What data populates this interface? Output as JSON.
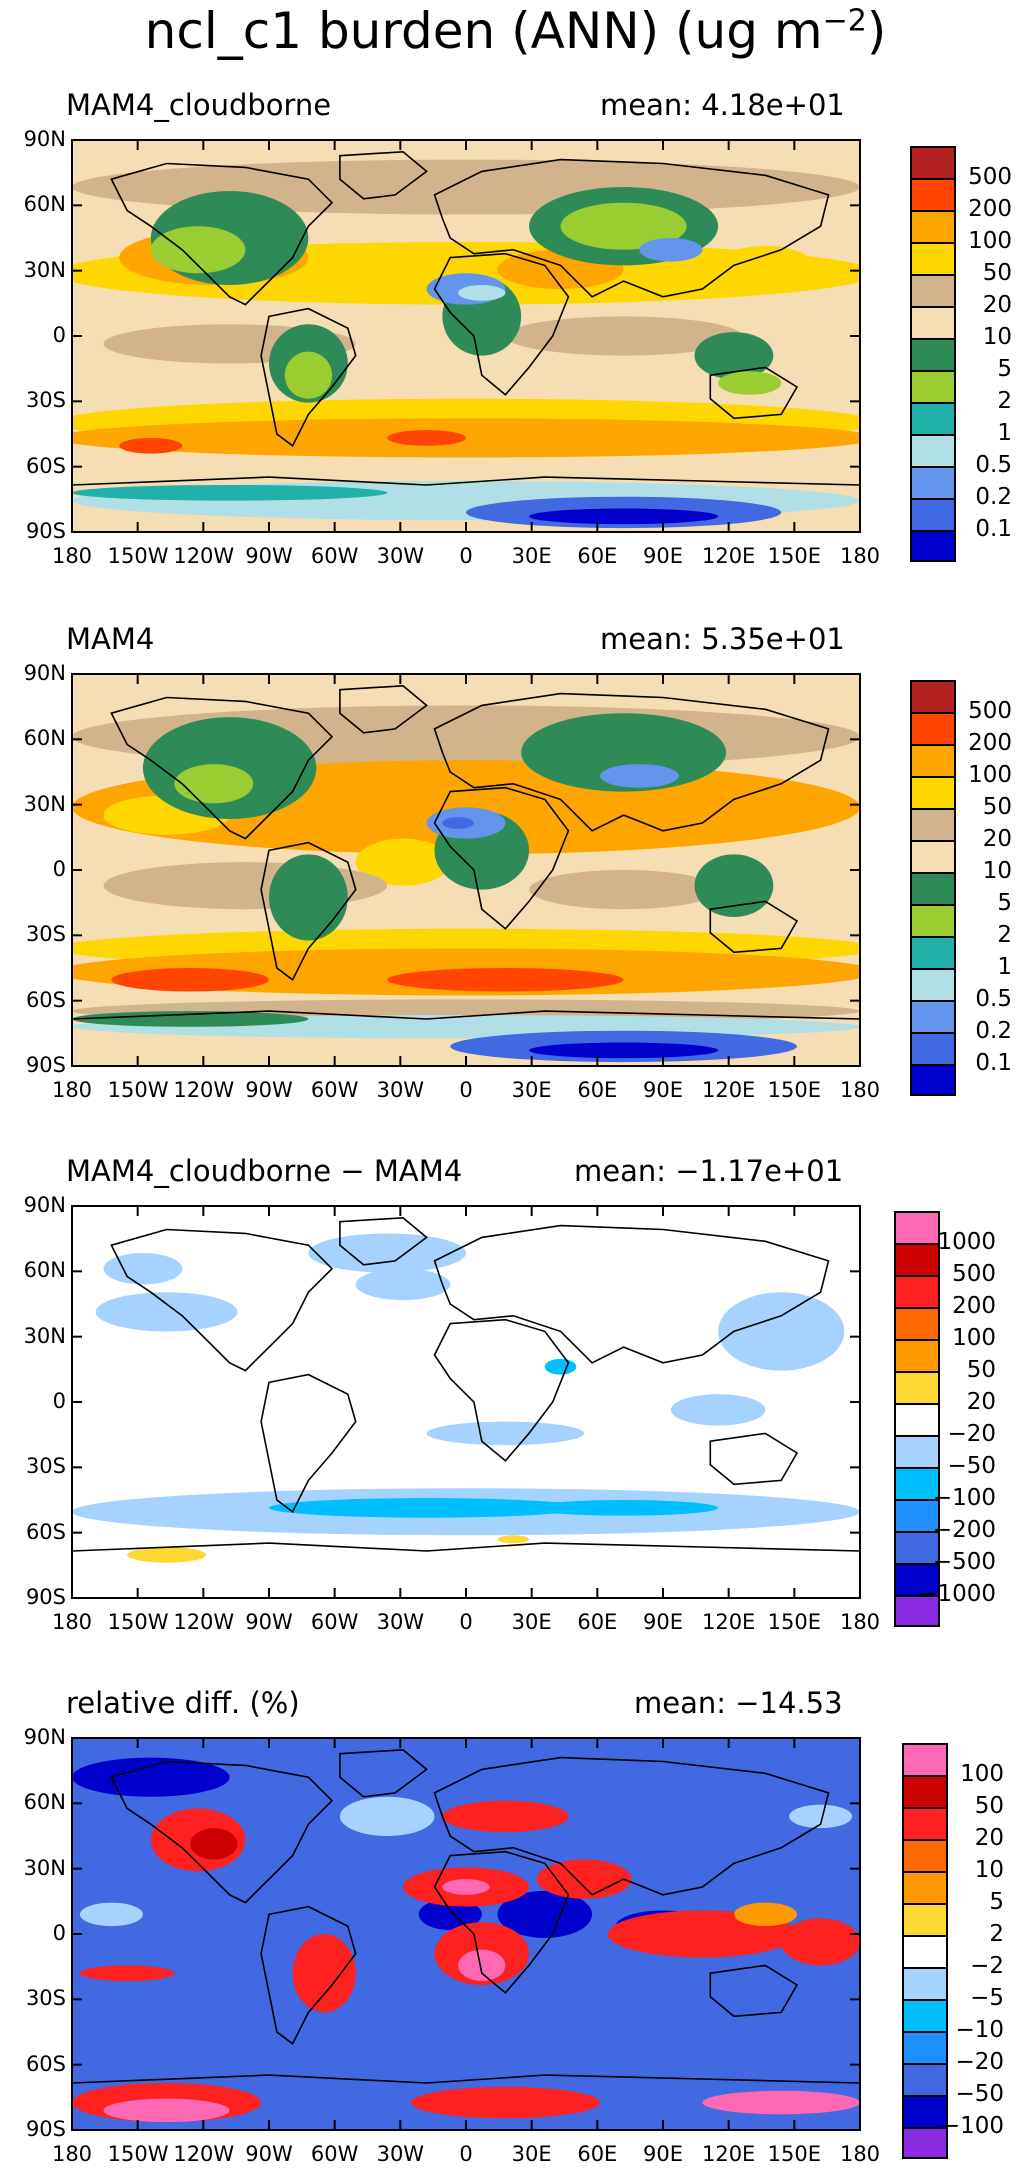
{
  "figure": {
    "title_main": "ncl_c1 burden (ANN) (ug m",
    "title_exp": "−2",
    "title_close": ")"
  },
  "axes": {
    "lat_labels": [
      "90N",
      "60N",
      "30N",
      "0",
      "30S",
      "60S",
      "90S"
    ],
    "lon_labels": [
      "180",
      "150W",
      "120W",
      "90W",
      "60W",
      "30W",
      "0",
      "30E",
      "60E",
      "90E",
      "120E",
      "150E",
      "180"
    ]
  },
  "panels": [
    {
      "id": "p1",
      "left_label": "MAM4_cloudborne",
      "right_label": "mean: 4.18e+01",
      "colorbar": {
        "colors": [
          "#b22222",
          "#ff4500",
          "#ffa500",
          "#ffd700",
          "#d2b48c",
          "#f5deb3",
          "#2e8b57",
          "#9acd32",
          "#20b2aa",
          "#b0e0e6",
          "#6495ed",
          "#4169e1",
          "#0000cd"
        ],
        "labels": [
          "500",
          "200",
          "100",
          "50",
          "20",
          "10",
          "5",
          "2",
          "1",
          "0.5",
          "0.2",
          "0.1"
        ]
      }
    },
    {
      "id": "p2",
      "left_label": "MAM4",
      "right_label": "mean: 5.35e+01",
      "colorbar": {
        "colors": [
          "#b22222",
          "#ff4500",
          "#ffa500",
          "#ffd700",
          "#d2b48c",
          "#f5deb3",
          "#2e8b57",
          "#9acd32",
          "#20b2aa",
          "#b0e0e6",
          "#6495ed",
          "#4169e1",
          "#0000cd"
        ],
        "labels": [
          "500",
          "200",
          "100",
          "50",
          "20",
          "10",
          "5",
          "2",
          "1",
          "0.5",
          "0.2",
          "0.1"
        ]
      }
    },
    {
      "id": "p3",
      "left_label": "MAM4_cloudborne − MAM4",
      "right_label": "mean: −1.17e+01",
      "colorbar": {
        "colors": [
          "#ff69b4",
          "#cc0000",
          "#ff2020",
          "#ff6a00",
          "#ff9900",
          "#ffd733",
          "#ffffff",
          "#a6d2ff",
          "#00bfff",
          "#1e90ff",
          "#4169e1",
          "#0000cd",
          "#8a2be2"
        ],
        "labels": [
          "1000",
          "500",
          "200",
          "100",
          "50",
          "20",
          "−20",
          "−50",
          "−100",
          "−200",
          "−500",
          "−1000"
        ]
      }
    },
    {
      "id": "p4",
      "left_label": "relative diff. (%)",
      "right_label": "mean: −14.53",
      "colorbar": {
        "colors": [
          "#ff69b4",
          "#cc0000",
          "#ff2020",
          "#ff6a00",
          "#ff9900",
          "#ffd733",
          "#ffffff",
          "#a6d2ff",
          "#00bfff",
          "#1e90ff",
          "#4169e1",
          "#0000cd",
          "#8a2be2"
        ],
        "labels": [
          "100",
          "50",
          "20",
          "10",
          "5",
          "2",
          "−2",
          "−5",
          "−10",
          "−20",
          "−50",
          "−100"
        ]
      }
    }
  ],
  "map_colors": {
    "p1": {
      "base": "#f5deb3",
      "tan": "#d2b48c",
      "yellow": "#ffd700",
      "orange": "#ffa500",
      "redorange": "#ff4500",
      "green": "#2e8b57",
      "lightgreen": "#9acd32",
      "teal": "#20b2aa",
      "palecyan": "#b0e0e6",
      "cornflower": "#6495ed",
      "royal": "#4169e1",
      "navy": "#0000cd"
    },
    "p3": {
      "base": "#ffffff",
      "lightblue": "#a6d2ff",
      "skyblue": "#00bfff",
      "yellow": "#ffd733"
    },
    "p4": {
      "base": "#4169e1",
      "navy": "#0000cd",
      "red": "#ff2020",
      "orange": "#ff9900",
      "pink": "#ff69b4",
      "dark": "#cc0000",
      "lightblue": "#a6d2ff"
    }
  }
}
